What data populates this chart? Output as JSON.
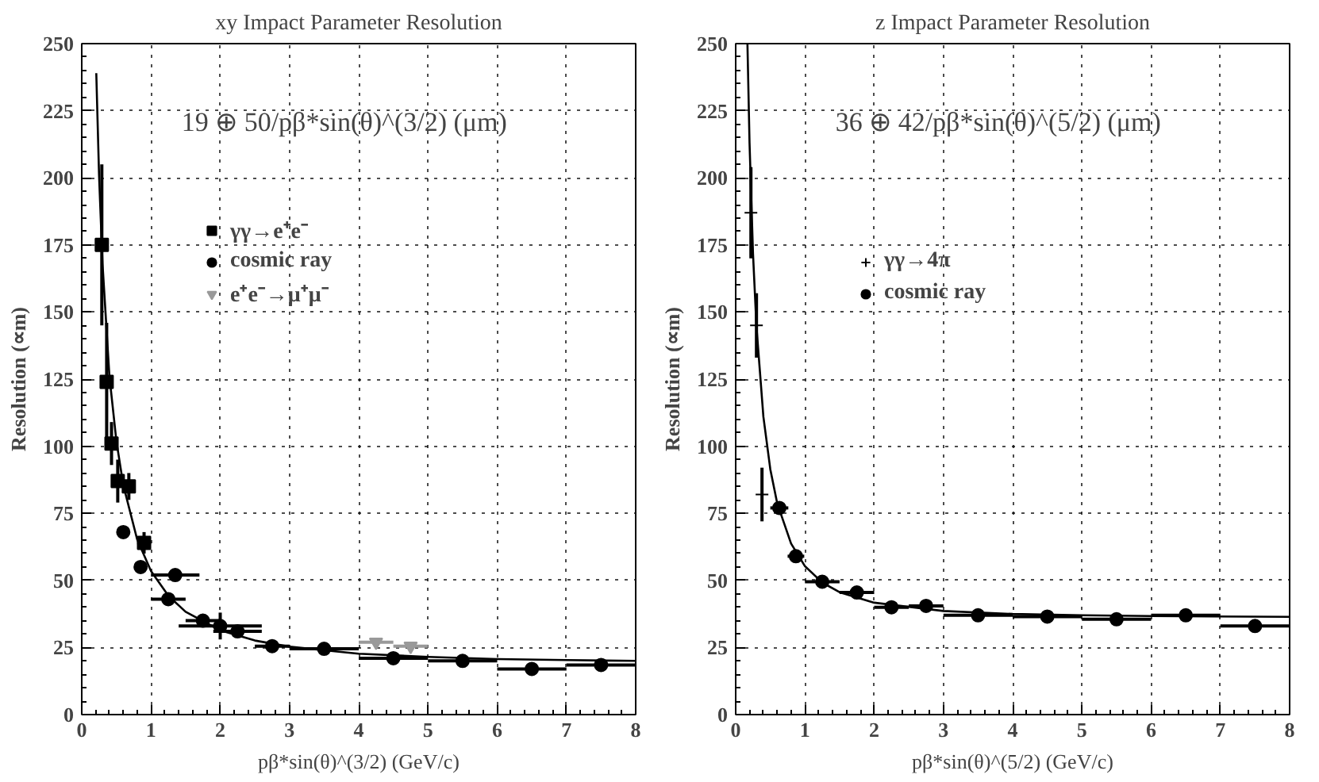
{
  "chart_data": [
    {
      "type": "scatter",
      "title": "xy Impact Parameter Resolution",
      "xlabel": "pβ*sin(θ)^(3/2) (GeV/c)",
      "ylabel": "Resolution (∝m)",
      "xlim": [
        0,
        8
      ],
      "ylim": [
        0,
        250
      ],
      "xticks": [
        0,
        1,
        2,
        3,
        4,
        5,
        6,
        7,
        8
      ],
      "yticks": [
        0,
        25,
        50,
        75,
        100,
        125,
        150,
        175,
        200,
        225,
        250
      ],
      "grid": true,
      "legend": "top",
      "annotations": [
        "19 ⊕ 50/pβ*sin(θ)^(3/2) (μm)"
      ],
      "series": [
        {
          "name": "γγ→e⁺e⁻",
          "color": "#000000",
          "marker": "square",
          "x": [
            0.29,
            0.36,
            0.43,
            0.52,
            0.68,
            0.9
          ],
          "values": [
            175,
            124,
            101,
            87,
            85,
            64
          ],
          "errors": [
            30,
            22,
            8,
            8,
            5,
            4
          ],
          "xerrors": [
            null,
            null,
            null,
            0.05,
            0.05,
            0.1
          ]
        },
        {
          "name": "cosmic ray",
          "color": "#000000",
          "marker": "circle",
          "x": [
            0.6,
            0.85,
            1.25,
            1.35,
            1.75,
            2.0,
            2.25,
            2.75,
            3.5,
            4.5,
            5.5,
            6.5,
            7.5
          ],
          "values": [
            68,
            55,
            43,
            52,
            35,
            33,
            31,
            25.5,
            24.5,
            21,
            20,
            17,
            18.5
          ],
          "errors": [
            2,
            2,
            1,
            2,
            2,
            5,
            2,
            1,
            1,
            1,
            1,
            1,
            1
          ],
          "xerrors": [
            0.05,
            0.05,
            0.25,
            0.35,
            0.25,
            0.6,
            0.35,
            0.25,
            0.5,
            0.5,
            0.5,
            0.5,
            0.5
          ]
        },
        {
          "name": "e⁺e⁻→μ⁺μ⁻",
          "color": "#999999",
          "marker": "triangle",
          "x": [
            4.25,
            4.75
          ],
          "values": [
            27,
            25.5
          ],
          "xerrors": [
            0.25,
            0.25
          ]
        },
        {
          "type": "line",
          "color": "#000000",
          "x": [
            0.21,
            0.25,
            0.3,
            0.4,
            0.5,
            0.6,
            0.8,
            1,
            1.25,
            1.5,
            2,
            2.5,
            3,
            4,
            5,
            6,
            7,
            8
          ],
          "values": [
            239,
            201,
            168,
            126,
            102,
            85.5,
            65.3,
            53.5,
            44.3,
            38.3,
            31.4,
            27.6,
            25.3,
            22.7,
            21.5,
            20.7,
            20.3,
            20
          ]
        }
      ]
    },
    {
      "type": "scatter",
      "title": "z Impact Parameter Resolution",
      "xlabel": "pβ*sin(θ)^(5/2) (GeV/c)",
      "ylabel": "Resolution (∝m)",
      "xlim": [
        0,
        8
      ],
      "ylim": [
        0,
        250
      ],
      "xticks": [
        0,
        1,
        2,
        3,
        4,
        5,
        6,
        7,
        8
      ],
      "yticks": [
        0,
        25,
        50,
        75,
        100,
        125,
        150,
        175,
        200,
        225,
        250
      ],
      "grid": true,
      "legend": "top",
      "annotations": [
        "36 ⊕ 42/pβ*sin(θ)^(5/2) (μm)"
      ],
      "series": [
        {
          "name": "γγ→4π",
          "color": "#000000",
          "marker": "cross",
          "x": [
            0.22,
            0.3,
            0.38
          ],
          "values": [
            187,
            145,
            82
          ],
          "errors": [
            17,
            12,
            10
          ]
        },
        {
          "name": "cosmic ray",
          "color": "#000000",
          "marker": "circle",
          "x": [
            0.63,
            0.87,
            1.25,
            1.75,
            2.25,
            2.75,
            3.5,
            4.5,
            5.5,
            6.5,
            7.5
          ],
          "values": [
            77,
            59,
            49.5,
            45.5,
            40,
            40.5,
            37,
            36.5,
            35.5,
            37,
            33
          ],
          "xerrors": [
            0.13,
            0.12,
            0.25,
            0.25,
            0.25,
            0.25,
            0.5,
            0.5,
            0.5,
            0.5,
            0.5
          ]
        },
        {
          "type": "line",
          "color": "#000000",
          "x": [
            0.17,
            0.2,
            0.25,
            0.3,
            0.4,
            0.5,
            0.6,
            0.8,
            1,
            1.25,
            1.5,
            2,
            3,
            4,
            5,
            6,
            8
          ],
          "values": [
            249.7,
            213,
            171.8,
            144.6,
            111,
            91.4,
            78.7,
            63.7,
            55.3,
            49.2,
            45.6,
            41.7,
            38.6,
            37.5,
            37,
            36.7,
            36.4
          ]
        }
      ]
    }
  ]
}
